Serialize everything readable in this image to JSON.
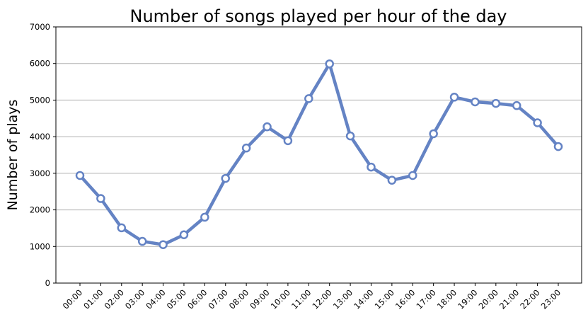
{
  "chart_data": {
    "type": "line",
    "title": "Number of songs played per hour of the day",
    "xlabel": "",
    "ylabel": "Number of plays",
    "categories": [
      "00:00",
      "01:00",
      "02:00",
      "03:00",
      "04:00",
      "05:00",
      "06:00",
      "07:00",
      "08:00",
      "09:00",
      "10:00",
      "11:00",
      "12:00",
      "13:00",
      "14:00",
      "15:00",
      "16:00",
      "17:00",
      "18:00",
      "19:00",
      "20:00",
      "21:00",
      "22:00",
      "23:00"
    ],
    "series": [
      {
        "values": [
          2940,
          2310,
          1510,
          1140,
          1050,
          1320,
          1800,
          2860,
          3690,
          4270,
          3890,
          5040,
          5990,
          4020,
          3170,
          2810,
          2940,
          4080,
          5080,
          4950,
          4910,
          4850,
          4380,
          3730
        ]
      }
    ],
    "ylim": [
      0,
      7000
    ],
    "yticks": [
      0,
      1000,
      2000,
      3000,
      4000,
      5000,
      6000,
      7000
    ],
    "grid": "horizontal",
    "colors": {
      "line": "#6483c4",
      "marker_fill": "#ffffff",
      "grid": "#b0b0b0"
    }
  }
}
